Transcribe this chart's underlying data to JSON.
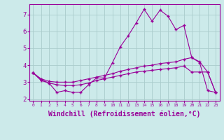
{
  "background_color": "#cceaea",
  "grid_color": "#aacccc",
  "line_color": "#990099",
  "marker": "+",
  "xlabel": "Windchill (Refroidissement éolien,°C)",
  "xlabel_fontsize": 7,
  "xlim": [
    -0.5,
    23.5
  ],
  "ylim": [
    1.9,
    7.6
  ],
  "yticks": [
    2,
    3,
    4,
    5,
    6,
    7
  ],
  "xticks": [
    0,
    1,
    2,
    3,
    4,
    5,
    6,
    7,
    8,
    9,
    10,
    11,
    12,
    13,
    14,
    15,
    16,
    17,
    18,
    19,
    20,
    21,
    22,
    23
  ],
  "curve1_x": [
    0,
    1,
    2,
    3,
    4,
    5,
    6,
    7,
    8,
    9,
    10,
    11,
    12,
    13,
    14,
    15,
    16,
    17,
    18,
    19,
    20,
    21,
    22,
    23
  ],
  "curve1_y": [
    3.55,
    3.15,
    2.95,
    2.4,
    2.5,
    2.4,
    2.4,
    2.85,
    3.25,
    3.25,
    4.15,
    5.1,
    5.75,
    6.5,
    7.3,
    6.6,
    7.25,
    6.9,
    6.1,
    6.35,
    4.45,
    4.15,
    2.5,
    2.4
  ],
  "curve2_x": [
    0,
    1,
    2,
    3,
    4,
    5,
    6,
    7,
    8,
    9,
    10,
    11,
    12,
    13,
    14,
    15,
    16,
    17,
    18,
    19,
    20,
    21,
    22,
    23
  ],
  "curve2_y": [
    3.55,
    3.2,
    3.05,
    3.0,
    3.0,
    3.0,
    3.1,
    3.2,
    3.3,
    3.4,
    3.5,
    3.65,
    3.75,
    3.85,
    3.95,
    4.0,
    4.1,
    4.15,
    4.2,
    4.35,
    4.45,
    4.2,
    3.6,
    2.4
  ],
  "curve3_x": [
    0,
    1,
    2,
    3,
    4,
    5,
    6,
    7,
    8,
    9,
    10,
    11,
    12,
    13,
    14,
    15,
    16,
    17,
    18,
    19,
    20,
    21,
    22,
    23
  ],
  "curve3_y": [
    3.55,
    3.1,
    2.95,
    2.85,
    2.8,
    2.8,
    2.85,
    2.95,
    3.1,
    3.2,
    3.3,
    3.4,
    3.5,
    3.6,
    3.65,
    3.7,
    3.75,
    3.8,
    3.85,
    3.95,
    3.6,
    3.6,
    3.6,
    2.4
  ]
}
